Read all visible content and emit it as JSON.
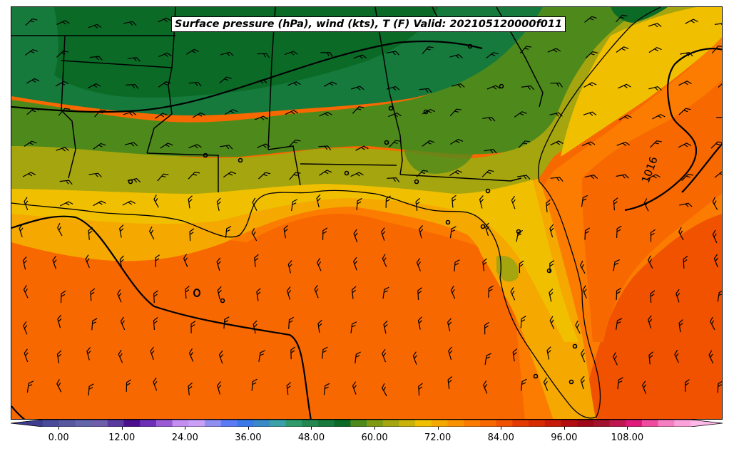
{
  "title": "Surface pressure (hPa), wind (kts), T (F) Valid: 202105120000f011",
  "isobar_label": "1016",
  "colorbar": {
    "min": -6,
    "max": 123,
    "step": 3,
    "ticks": [
      "0.00",
      "12.00",
      "24.00",
      "36.00",
      "48.00",
      "60.00",
      "72.00",
      "84.00",
      "96.00",
      "108.00"
    ],
    "colors": [
      "#3d3c8f",
      "#4a4a9a",
      "#57589f",
      "#6464a8",
      "#6e5eab",
      "#5a3a9e",
      "#4a1090",
      "#6e2fb8",
      "#9b59d6",
      "#c38ef0",
      "#c9a0f5",
      "#8f8ff2",
      "#5b7bf5",
      "#3b78e8",
      "#3a8ac8",
      "#3ba0a8",
      "#2f9a6a",
      "#23874f",
      "#157a3c",
      "#0b6b26",
      "#4e8a1b",
      "#7d9a12",
      "#a5a50f",
      "#c9b20a",
      "#f0c000",
      "#f5a800",
      "#f99200",
      "#fb7c00",
      "#f86800",
      "#f05200",
      "#e43a00",
      "#d82a00",
      "#c81a08",
      "#b30c10",
      "#9e0818",
      "#a0122e",
      "#c0164f",
      "#e0187a",
      "#f04aa0",
      "#f67ec0",
      "#fba0d8",
      "#ffb8e8"
    ]
  },
  "colors": {
    "green_dark": "#0b6b26",
    "green": "#157a3c",
    "olive_green": "#4e8a1b",
    "olive": "#a5a50f",
    "yellow": "#f0c000",
    "orange_light": "#f5a800",
    "orange": "#fb7c00",
    "orange_red": "#f86800",
    "red_orange": "#f05200"
  }
}
